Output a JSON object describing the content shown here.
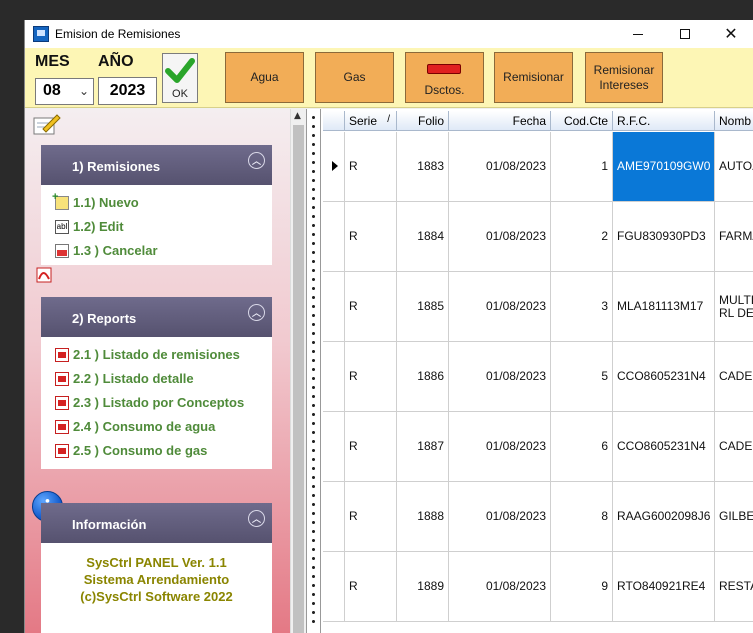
{
  "window": {
    "title": "Emision de Remisiones"
  },
  "toolbar": {
    "mes_label": "MES",
    "ano_label": "AÑO",
    "mes_value": "08",
    "ano_value": "2023",
    "ok_label": "OK",
    "agua_label": "Agua",
    "gas_label": "Gas",
    "dsctos_label": "Dsctos.",
    "remisionar_label": "Remisionar",
    "remisionar_intereses_label": "Remisionar\nIntereses"
  },
  "panels": {
    "remisiones": {
      "title": "1) Remisiones",
      "items": [
        "1.1) Nuevo",
        "1.2) Edit",
        "1.3 ) Cancelar"
      ],
      "icons": [
        "new-icon",
        "edit-icon",
        "cancel-icon"
      ]
    },
    "reports": {
      "title": "2) Reports",
      "items": [
        "2.1 ) Listado de remisiones",
        "2.2 ) Listado detalle",
        "2.3 ) Listado por Conceptos",
        "2.4 ) Consumo de agua",
        "2.5 ) Consumo de gas"
      ]
    },
    "info": {
      "title": "Información",
      "lines": [
        "SysCtrl PANEL Ver. 1.1",
        "Sistema Arrendamiento",
        "(c)SysCtrl Software 2022"
      ]
    }
  },
  "grid": {
    "columns": [
      "Serie",
      "Folio",
      "Fecha",
      "Cod.Cte",
      "R.F.C.",
      "Nomb"
    ],
    "sort_indicator": "/",
    "rows": [
      {
        "serie": "R",
        "folio": "1883",
        "fecha": "01/08/2023",
        "cod": "1",
        "rfc": "AME970109GW0",
        "nombre": "AUTOZ"
      },
      {
        "serie": "R",
        "folio": "1884",
        "fecha": "01/08/2023",
        "cod": "2",
        "rfc": "FGU830930PD3",
        "nombre": "FARMA"
      },
      {
        "serie": "R",
        "folio": "1885",
        "fecha": "01/08/2023",
        "cod": "3",
        "rfc": "MLA181113M17",
        "nombre": "MULTI\nRL DE"
      },
      {
        "serie": "R",
        "folio": "1886",
        "fecha": "01/08/2023",
        "cod": "5",
        "rfc": "CCO8605231N4",
        "nombre": "CADEN"
      },
      {
        "serie": "R",
        "folio": "1887",
        "fecha": "01/08/2023",
        "cod": "6",
        "rfc": "CCO8605231N4",
        "nombre": "CADEN"
      },
      {
        "serie": "R",
        "folio": "1888",
        "fecha": "01/08/2023",
        "cod": "8",
        "rfc": "RAAG6002098J6",
        "nombre": "GILBER"
      },
      {
        "serie": "R",
        "folio": "1889",
        "fecha": "01/08/2023",
        "cod": "9",
        "rfc": "RTO840921RE4",
        "nombre": "RESTA"
      }
    ],
    "selected_color": "#0a78d7"
  }
}
